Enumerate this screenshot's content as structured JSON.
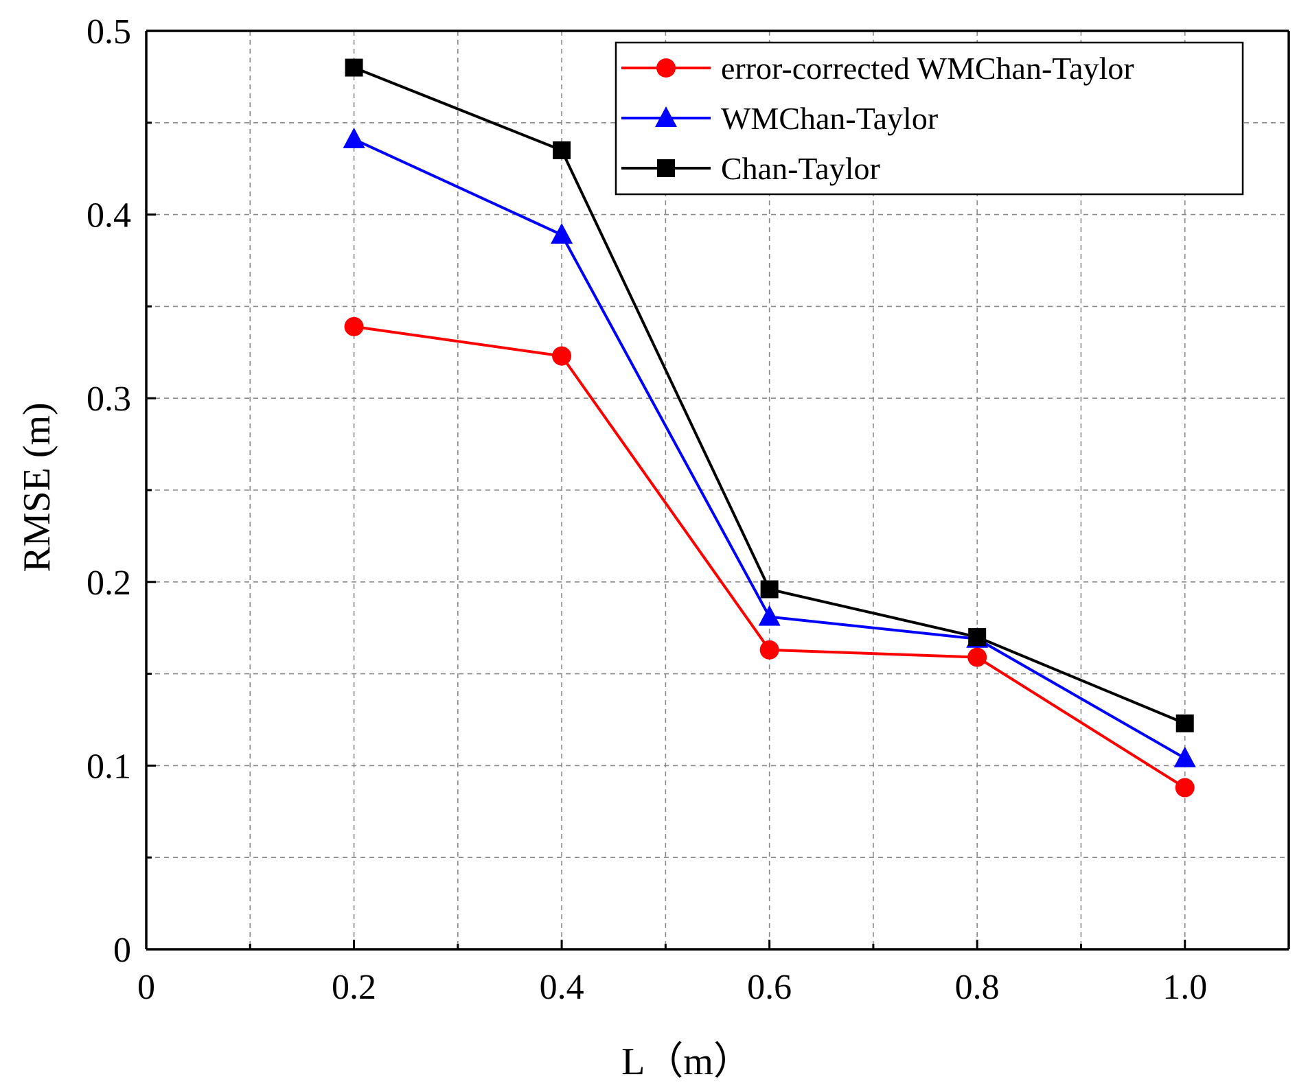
{
  "chart_data": {
    "type": "line",
    "title": "",
    "xlabel": "L（m）",
    "ylabel": "RMSE (m)",
    "xlim": [
      0,
      1.1
    ],
    "ylim": [
      0,
      0.5
    ],
    "x_ticks": [
      0,
      0.2,
      0.4,
      0.6,
      0.8,
      1.0
    ],
    "x_tick_labels": [
      "0",
      "0.2",
      "0.4",
      "0.6",
      "0.8",
      "1.0"
    ],
    "y_ticks": [
      0,
      0.1,
      0.2,
      0.3,
      0.4,
      0.5
    ],
    "y_tick_labels": [
      "0",
      "0.1",
      "0.2",
      "0.3",
      "0.4",
      "0.5"
    ],
    "grid": true,
    "legend_position": "top-right",
    "x": [
      0.2,
      0.4,
      0.6,
      0.8,
      1.0
    ],
    "series": [
      {
        "name": "error-corrected WMChan-Taylor",
        "color": "#ff0000",
        "marker": "circle",
        "values": [
          0.339,
          0.323,
          0.163,
          0.159,
          0.088
        ]
      },
      {
        "name": "WMChan-Taylor",
        "color": "#0000ff",
        "marker": "triangle",
        "values": [
          0.441,
          0.389,
          0.181,
          0.169,
          0.104
        ]
      },
      {
        "name": "Chan-Taylor",
        "color": "#000000",
        "marker": "square",
        "values": [
          0.48,
          0.435,
          0.196,
          0.17,
          0.123
        ]
      }
    ]
  }
}
